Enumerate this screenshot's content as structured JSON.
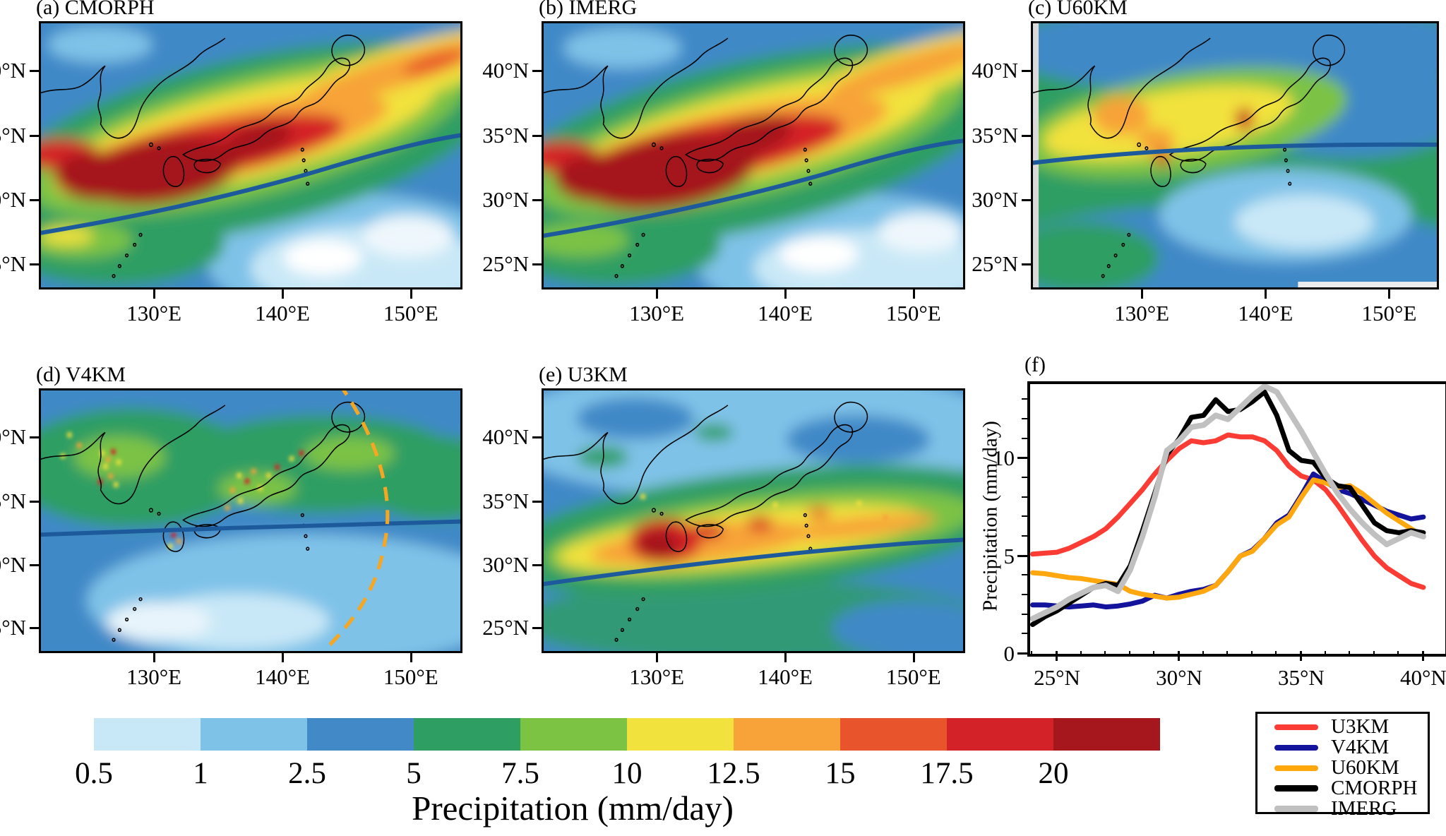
{
  "panels": {
    "a": {
      "label": "(a) CMORPH"
    },
    "b": {
      "label": "(b) IMERG"
    },
    "c": {
      "label": "(c) U60KM"
    },
    "d": {
      "label": "(d) V4KM"
    },
    "e": {
      "label": "(e) U3KM"
    },
    "f": {
      "label": "(f)"
    }
  },
  "map_axes": {
    "lat_ticks": [
      "40°N",
      "35°N",
      "30°N",
      "25°N"
    ],
    "lon_ticks": [
      "130°E",
      "140°E",
      "150°E"
    ]
  },
  "map_overlays": {
    "front_line_color": "#1d5a9b",
    "v4km_domain_arc_color": "#f5a623"
  },
  "chart_data": {
    "type": "line",
    "title": "(f)",
    "ylabel": "Precipitation (mm/day)",
    "x_tick_labels": [
      "25°N",
      "30°N",
      "35°N",
      "40°N"
    ],
    "x_tick_values": [
      25,
      30,
      35,
      40
    ],
    "y_tick_values": [
      0,
      5,
      10
    ],
    "xlim": [
      23.9,
      40.9
    ],
    "ylim": [
      0,
      13.8
    ],
    "x": [
      24,
      24.5,
      25,
      25.5,
      26,
      26.5,
      27,
      27.5,
      28,
      28.5,
      29,
      29.5,
      30,
      30.5,
      31,
      31.5,
      32,
      32.5,
      33,
      33.5,
      34,
      34.5,
      35,
      35.5,
      36,
      36.5,
      37,
      37.5,
      38,
      38.5,
      39,
      39.5,
      40
    ],
    "series": [
      {
        "name": "U3KM",
        "color": "#fb3c34",
        "values": [
          5.1,
          5.15,
          5.2,
          5.4,
          5.7,
          6.0,
          6.4,
          7.0,
          7.7,
          8.4,
          9.2,
          9.9,
          10.5,
          10.9,
          10.8,
          10.9,
          11.2,
          11.1,
          11.1,
          10.9,
          10.4,
          9.6,
          9.1,
          8.9,
          8.4,
          7.6,
          6.7,
          5.8,
          5.0,
          4.4,
          4.0,
          3.6,
          3.4
        ]
      },
      {
        "name": "V4KM",
        "color": "#13139b",
        "values": [
          2.5,
          2.5,
          2.45,
          2.4,
          2.45,
          2.5,
          2.4,
          2.45,
          2.55,
          2.7,
          3.0,
          2.85,
          3.05,
          3.2,
          3.3,
          3.5,
          4.2,
          5.0,
          5.3,
          5.9,
          6.7,
          7.1,
          8.1,
          9.2,
          8.8,
          8.4,
          8.2,
          7.9,
          7.6,
          7.3,
          7.1,
          6.9,
          7.0
        ]
      },
      {
        "name": "U60KM",
        "color": "#ffa70f",
        "values": [
          4.15,
          4.1,
          4.0,
          3.9,
          3.85,
          3.75,
          3.65,
          3.55,
          3.2,
          3.05,
          2.95,
          2.85,
          2.9,
          3.05,
          3.2,
          3.5,
          4.2,
          5.0,
          5.25,
          5.9,
          6.6,
          7.0,
          8.0,
          8.9,
          8.75,
          8.5,
          8.6,
          8.2,
          7.7,
          7.2,
          6.8,
          6.4,
          6.0
        ]
      },
      {
        "name": "CMORPH",
        "color": "#000000",
        "values": [
          1.5,
          1.9,
          2.2,
          2.6,
          3.0,
          3.4,
          3.6,
          3.5,
          4.5,
          6.3,
          8.2,
          10.2,
          11.0,
          12.1,
          12.2,
          13.0,
          12.4,
          12.5,
          12.9,
          13.4,
          12.2,
          10.4,
          9.9,
          9.8,
          9.0,
          8.6,
          8.5,
          7.6,
          6.7,
          6.3,
          6.2,
          6.3,
          6.2
        ]
      },
      {
        "name": "IMERG",
        "color": "#c0c0c0",
        "values": [
          1.8,
          2.1,
          2.4,
          2.8,
          3.1,
          3.4,
          3.5,
          3.2,
          4.3,
          6.0,
          8.0,
          10.4,
          10.9,
          11.6,
          11.7,
          12.2,
          12.0,
          12.6,
          13.2,
          13.7,
          13.4,
          12.4,
          11.4,
          10.3,
          9.2,
          8.2,
          7.4,
          6.7,
          6.1,
          5.6,
          5.9,
          6.2,
          6.0
        ]
      }
    ]
  },
  "colorbar": {
    "labels": [
      "0.5",
      "1",
      "2.5",
      "5",
      "7.5",
      "10",
      "12.5",
      "15",
      "17.5",
      "20"
    ],
    "colors": [
      "#c9e8f7",
      "#7fc2e8",
      "#4189c7",
      "#2f9e63",
      "#7cc344",
      "#f2e23e",
      "#f7a339",
      "#e8542b",
      "#d42328",
      "#a5161d"
    ],
    "title": "Precipitation (mm/day)"
  },
  "legend": {
    "items": [
      {
        "label": "U3KM",
        "color": "#fb3c34"
      },
      {
        "label": "V4KM",
        "color": "#13139b"
      },
      {
        "label": "U60KM",
        "color": "#ffa70f"
      },
      {
        "label": "CMORPH",
        "color": "#000000"
      },
      {
        "label": "IMERG",
        "color": "#c0c0c0"
      }
    ]
  }
}
